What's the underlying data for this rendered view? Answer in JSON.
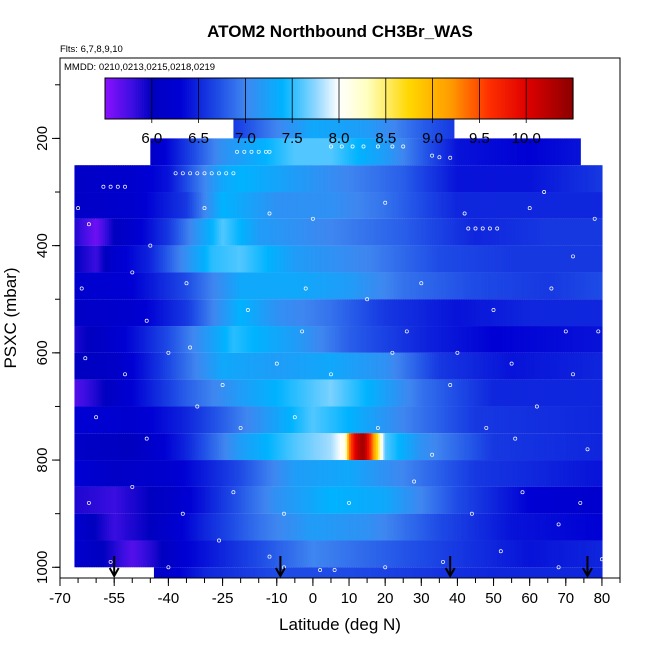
{
  "chart_data": {
    "type": "heatmap",
    "title": "ATOM2 Northbound CH3Br_WAS",
    "flights_label": "Flts: 6,7,8,9,10",
    "dates_label": "MMDD: 0210,0213,0215,0218,0219",
    "xlabel": "Latitude (deg N)",
    "ylabel": "PSXC (mbar)",
    "xlim": [
      -70,
      85
    ],
    "ylim": [
      1020,
      50
    ],
    "y_reversed": true,
    "x_ticks": [
      -70,
      -55,
      -40,
      -25,
      -10,
      0,
      10,
      20,
      30,
      40,
      50,
      60,
      70,
      80
    ],
    "x_minor_step": 5,
    "y_ticks": [
      200,
      400,
      600,
      800,
      1000
    ],
    "y_minor_step": 100,
    "colorbar": {
      "min": 5.5,
      "max": 10.5,
      "tick_values": [
        6.0,
        6.5,
        7.0,
        7.5,
        8.0,
        8.5,
        9.0,
        9.5,
        10.0
      ],
      "tick_labels": [
        "6.0",
        "6.5",
        "7.0",
        "7.5",
        "8.0",
        "8.5",
        "9.0",
        "9.5",
        "10.0"
      ]
    },
    "color_scale": [
      {
        "v": 5.5,
        "c": "#8b10ff"
      },
      {
        "v": 5.8,
        "c": "#3a0ee0"
      },
      {
        "v": 6.0,
        "c": "#0000c0"
      },
      {
        "v": 6.3,
        "c": "#0000d4"
      },
      {
        "v": 6.7,
        "c": "#1e4be6"
      },
      {
        "v": 7.0,
        "c": "#3f86f0"
      },
      {
        "v": 7.4,
        "c": "#00b3ff"
      },
      {
        "v": 7.75,
        "c": "#8fd6ff"
      },
      {
        "v": 8.0,
        "c": "#ffffff"
      },
      {
        "v": 8.3,
        "c": "#ffffc0"
      },
      {
        "v": 8.75,
        "c": "#ffd700"
      },
      {
        "v": 9.2,
        "c": "#ff9a00"
      },
      {
        "v": 9.6,
        "c": "#ff3000"
      },
      {
        "v": 10.0,
        "c": "#e00000"
      },
      {
        "v": 10.5,
        "c": "#8b0000"
      }
    ],
    "layers": [
      {
        "p_top": 150,
        "p_bot": 200,
        "lat_min": -22,
        "lat_max": 39,
        "nodes": [
          [
            -22,
            6.6
          ],
          [
            -10,
            7.0
          ],
          [
            0,
            7.3
          ],
          [
            15,
            7.2
          ],
          [
            30,
            6.8
          ],
          [
            39,
            6.6
          ]
        ]
      },
      {
        "p_top": 200,
        "p_bot": 250,
        "lat_min": -45,
        "lat_max": 74,
        "nodes": [
          [
            -45,
            6.1
          ],
          [
            -35,
            6.6
          ],
          [
            -25,
            7.1
          ],
          [
            -5,
            7.6
          ],
          [
            5,
            7.6
          ],
          [
            20,
            7.2
          ],
          [
            40,
            6.4
          ],
          [
            60,
            6.3
          ],
          [
            74,
            6.4
          ]
        ]
      },
      {
        "p_top": 250,
        "p_bot": 300,
        "lat_min": -66,
        "lat_max": 80,
        "nodes": [
          [
            -66,
            6.1
          ],
          [
            -50,
            6.2
          ],
          [
            -40,
            6.4
          ],
          [
            -25,
            7.3
          ],
          [
            -20,
            7.4
          ],
          [
            -5,
            7.2
          ],
          [
            10,
            7.0
          ],
          [
            25,
            6.8
          ],
          [
            40,
            6.4
          ],
          [
            60,
            6.4
          ],
          [
            80,
            6.6
          ]
        ]
      },
      {
        "p_top": 300,
        "p_bot": 350,
        "lat_min": -66,
        "lat_max": 80,
        "nodes": [
          [
            -66,
            6.1
          ],
          [
            -50,
            6.2
          ],
          [
            -35,
            6.6
          ],
          [
            -25,
            7.4
          ],
          [
            -10,
            7.1
          ],
          [
            5,
            7.1
          ],
          [
            20,
            6.9
          ],
          [
            40,
            6.5
          ],
          [
            60,
            6.5
          ],
          [
            80,
            6.5
          ]
        ]
      },
      {
        "p_top": 350,
        "p_bot": 400,
        "lat_min": -66,
        "lat_max": 80,
        "nodes": [
          [
            -66,
            5.9
          ],
          [
            -60,
            5.6
          ],
          [
            -55,
            6.0
          ],
          [
            -40,
            6.6
          ],
          [
            -25,
            7.6
          ],
          [
            -15,
            7.2
          ],
          [
            5,
            7.0
          ],
          [
            25,
            6.8
          ],
          [
            45,
            6.5
          ],
          [
            65,
            6.6
          ],
          [
            80,
            6.6
          ]
        ]
      },
      {
        "p_top": 400,
        "p_bot": 450,
        "lat_min": -66,
        "lat_max": 80,
        "nodes": [
          [
            -66,
            6.0
          ],
          [
            -60,
            5.8
          ],
          [
            -55,
            6.2
          ],
          [
            -45,
            6.5
          ],
          [
            -28,
            7.5
          ],
          [
            -20,
            7.6
          ],
          [
            -5,
            7.2
          ],
          [
            15,
            7.0
          ],
          [
            35,
            6.7
          ],
          [
            55,
            6.6
          ],
          [
            80,
            6.6
          ]
        ]
      },
      {
        "p_top": 450,
        "p_bot": 500,
        "lat_min": -66,
        "lat_max": 80,
        "nodes": [
          [
            -66,
            6.2
          ],
          [
            -50,
            6.3
          ],
          [
            -35,
            6.7
          ],
          [
            -20,
            7.3
          ],
          [
            -5,
            7.3
          ],
          [
            10,
            7.2
          ],
          [
            25,
            6.9
          ],
          [
            45,
            6.7
          ],
          [
            65,
            6.6
          ],
          [
            80,
            6.7
          ]
        ]
      },
      {
        "p_top": 500,
        "p_bot": 550,
        "lat_min": -66,
        "lat_max": 80,
        "nodes": [
          [
            -66,
            6.1
          ],
          [
            -50,
            6.2
          ],
          [
            -35,
            6.6
          ],
          [
            -20,
            7.4
          ],
          [
            -10,
            7.1
          ],
          [
            5,
            6.9
          ],
          [
            20,
            6.6
          ],
          [
            40,
            6.4
          ],
          [
            60,
            6.5
          ],
          [
            80,
            6.5
          ]
        ]
      },
      {
        "p_top": 550,
        "p_bot": 600,
        "lat_min": -66,
        "lat_max": 80,
        "nodes": [
          [
            -66,
            5.9
          ],
          [
            -58,
            6.1
          ],
          [
            -40,
            6.7
          ],
          [
            -22,
            7.5
          ],
          [
            -5,
            7.2
          ],
          [
            10,
            6.8
          ],
          [
            30,
            6.5
          ],
          [
            50,
            6.3
          ],
          [
            80,
            6.4
          ]
        ]
      },
      {
        "p_top": 600,
        "p_bot": 650,
        "lat_min": -66,
        "lat_max": 80,
        "nodes": [
          [
            -66,
            6.0
          ],
          [
            -55,
            6.1
          ],
          [
            -42,
            6.6
          ],
          [
            -25,
            7.3
          ],
          [
            -10,
            7.2
          ],
          [
            5,
            7.3
          ],
          [
            20,
            7.1
          ],
          [
            35,
            6.6
          ],
          [
            55,
            6.4
          ],
          [
            80,
            6.5
          ]
        ]
      },
      {
        "p_top": 650,
        "p_bot": 700,
        "lat_min": -66,
        "lat_max": 80,
        "nodes": [
          [
            -66,
            5.7
          ],
          [
            -60,
            5.9
          ],
          [
            -50,
            6.3
          ],
          [
            -35,
            6.8
          ],
          [
            -20,
            7.2
          ],
          [
            -5,
            7.5
          ],
          [
            5,
            7.7
          ],
          [
            15,
            7.4
          ],
          [
            30,
            6.9
          ],
          [
            50,
            6.5
          ],
          [
            80,
            6.5
          ]
        ]
      },
      {
        "p_top": 700,
        "p_bot": 750,
        "lat_min": -66,
        "lat_max": 80,
        "nodes": [
          [
            -66,
            6.3
          ],
          [
            -50,
            6.2
          ],
          [
            -35,
            6.5
          ],
          [
            -15,
            7.1
          ],
          [
            0,
            7.6
          ],
          [
            10,
            7.4
          ],
          [
            25,
            7.0
          ],
          [
            45,
            6.6
          ],
          [
            80,
            6.5
          ]
        ]
      },
      {
        "p_top": 750,
        "p_bot": 800,
        "lat_min": -66,
        "lat_max": 80,
        "nodes": [
          [
            -66,
            6.1
          ],
          [
            -50,
            6.0
          ],
          [
            -35,
            6.5
          ],
          [
            -20,
            7.2
          ],
          [
            -5,
            7.6
          ],
          [
            5,
            7.8
          ],
          [
            9,
            8.1
          ],
          [
            10,
            9.3
          ],
          [
            12,
            10.1
          ],
          [
            14,
            10.4
          ],
          [
            16,
            9.6
          ],
          [
            18,
            8.6
          ],
          [
            20,
            7.6
          ],
          [
            30,
            7.1
          ],
          [
            50,
            6.6
          ],
          [
            80,
            6.5
          ]
        ]
      },
      {
        "p_top": 800,
        "p_bot": 850,
        "lat_min": -66,
        "lat_max": 80,
        "nodes": [
          [
            -66,
            6.3
          ],
          [
            -55,
            6.1
          ],
          [
            -40,
            6.2
          ],
          [
            -20,
            6.7
          ],
          [
            -5,
            7.2
          ],
          [
            10,
            7.3
          ],
          [
            25,
            7.0
          ],
          [
            45,
            6.6
          ],
          [
            80,
            6.4
          ]
        ]
      },
      {
        "p_top": 850,
        "p_bot": 900,
        "lat_min": -66,
        "lat_max": 80,
        "nodes": [
          [
            -66,
            5.9
          ],
          [
            -55,
            5.8
          ],
          [
            -40,
            6.1
          ],
          [
            -25,
            6.6
          ],
          [
            -10,
            7.1
          ],
          [
            5,
            7.4
          ],
          [
            20,
            7.3
          ],
          [
            40,
            6.7
          ],
          [
            60,
            6.3
          ],
          [
            80,
            6.2
          ]
        ]
      },
      {
        "p_top": 900,
        "p_bot": 950,
        "lat_min": -66,
        "lat_max": 80,
        "nodes": [
          [
            -66,
            6.2
          ],
          [
            -55,
            5.8
          ],
          [
            -45,
            6.0
          ],
          [
            -30,
            6.5
          ],
          [
            -15,
            6.9
          ],
          [
            0,
            7.2
          ],
          [
            15,
            7.1
          ],
          [
            35,
            6.7
          ],
          [
            55,
            6.4
          ],
          [
            80,
            6.3
          ]
        ]
      },
      {
        "p_top": 950,
        "p_bot": 1000,
        "lat_min": -66,
        "lat_max": 80,
        "nodes": [
          [
            -66,
            6.2
          ],
          [
            -58,
            6.0
          ],
          [
            -50,
            5.7
          ],
          [
            -44,
            5.9
          ],
          [
            -35,
            6.3
          ],
          [
            -20,
            6.6
          ],
          [
            0,
            7.0
          ],
          [
            20,
            6.8
          ],
          [
            40,
            6.6
          ],
          [
            60,
            6.4
          ],
          [
            80,
            6.5
          ]
        ]
      },
      {
        "p_top": 1000,
        "p_bot": 1020,
        "lat_min": -44,
        "lat_max": 80,
        "nodes": [
          [
            -44,
            6.1
          ],
          [
            -30,
            6.5
          ],
          [
            -10,
            6.7
          ],
          [
            10,
            6.7
          ],
          [
            30,
            6.6
          ],
          [
            50,
            6.5
          ],
          [
            80,
            6.5
          ]
        ]
      }
    ],
    "sample_points": [
      [
        -38,
        265
      ],
      [
        -36,
        265
      ],
      [
        -34,
        265
      ],
      [
        -32,
        265
      ],
      [
        -30,
        265
      ],
      [
        -28,
        265
      ],
      [
        -26,
        265
      ],
      [
        -24,
        265
      ],
      [
        -22,
        265
      ],
      [
        -21,
        225
      ],
      [
        -19,
        225
      ],
      [
        -17,
        225
      ],
      [
        -15,
        225
      ],
      [
        -13,
        225
      ],
      [
        -12,
        225
      ],
      [
        5,
        215
      ],
      [
        8,
        215
      ],
      [
        11,
        215
      ],
      [
        14,
        215
      ],
      [
        18,
        215
      ],
      [
        22,
        215
      ],
      [
        25,
        215
      ],
      [
        -58,
        290
      ],
      [
        -56,
        290
      ],
      [
        -54,
        290
      ],
      [
        -52,
        290
      ],
      [
        33,
        232
      ],
      [
        35,
        235
      ],
      [
        38,
        236
      ],
      [
        43,
        368
      ],
      [
        45,
        368
      ],
      [
        47,
        368
      ],
      [
        49,
        368
      ],
      [
        51,
        368
      ],
      [
        -62,
        360
      ],
      [
        -45,
        400
      ],
      [
        -30,
        330
      ],
      [
        -12,
        340
      ],
      [
        0,
        350
      ],
      [
        20,
        320
      ],
      [
        42,
        340
      ],
      [
        60,
        330
      ],
      [
        72,
        420
      ],
      [
        78,
        350
      ],
      [
        -64,
        480
      ],
      [
        -50,
        450
      ],
      [
        -35,
        470
      ],
      [
        -18,
        520
      ],
      [
        -2,
        480
      ],
      [
        15,
        500
      ],
      [
        30,
        470
      ],
      [
        50,
        520
      ],
      [
        66,
        480
      ],
      [
        79,
        560
      ],
      [
        -63,
        610
      ],
      [
        -52,
        640
      ],
      [
        -40,
        600
      ],
      [
        -25,
        660
      ],
      [
        -10,
        620
      ],
      [
        5,
        640
      ],
      [
        22,
        600
      ],
      [
        38,
        660
      ],
      [
        55,
        620
      ],
      [
        72,
        640
      ],
      [
        -60,
        720
      ],
      [
        -46,
        760
      ],
      [
        -32,
        700
      ],
      [
        -20,
        740
      ],
      [
        -5,
        720
      ],
      [
        18,
        740
      ],
      [
        33,
        790
      ],
      [
        48,
        740
      ],
      [
        62,
        700
      ],
      [
        76,
        780
      ],
      [
        -62,
        880
      ],
      [
        -50,
        850
      ],
      [
        -36,
        900
      ],
      [
        -22,
        860
      ],
      [
        -8,
        900
      ],
      [
        10,
        880
      ],
      [
        28,
        840
      ],
      [
        44,
        900
      ],
      [
        58,
        860
      ],
      [
        74,
        880
      ],
      [
        -56,
        990
      ],
      [
        -40,
        1000
      ],
      [
        -26,
        950
      ],
      [
        -12,
        980
      ],
      [
        -8,
        1000
      ],
      [
        2,
        1005
      ],
      [
        6,
        1005
      ],
      [
        20,
        1000
      ],
      [
        36,
        990
      ],
      [
        52,
        970
      ],
      [
        68,
        1000
      ],
      [
        80,
        985
      ],
      [
        -65,
        330
      ],
      [
        -46,
        540
      ],
      [
        -34,
        590
      ],
      [
        -3,
        560
      ],
      [
        26,
        560
      ],
      [
        40,
        600
      ],
      [
        56,
        760
      ],
      [
        70,
        560
      ],
      [
        64,
        300
      ],
      [
        68,
        920
      ]
    ],
    "profile_arrows": [
      -55,
      -9,
      38,
      76
    ]
  }
}
